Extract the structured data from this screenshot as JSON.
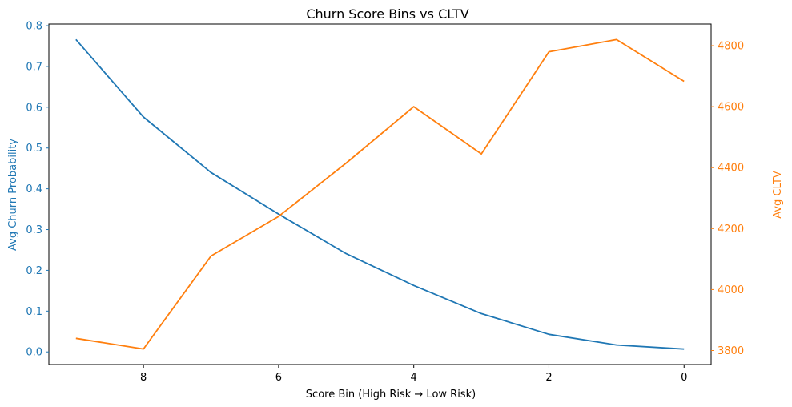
{
  "chart_data": {
    "type": "line",
    "title": "Churn Score Bins vs CLTV",
    "xlabel": "Score Bin (High Risk → Low Risk)",
    "x": [
      9,
      8,
      7,
      6,
      5,
      4,
      3,
      2,
      1,
      0
    ],
    "xlim": [
      9.4,
      -0.4
    ],
    "xticks": [
      "8",
      "6",
      "4",
      "2",
      "0"
    ],
    "grid": false,
    "legend": "none",
    "series": [
      {
        "axis": "left",
        "color": "#1f77b4",
        "values": [
          0.766,
          0.576,
          0.44,
          0.338,
          0.241,
          0.163,
          0.094,
          0.043,
          0.017,
          0.007
        ]
      },
      {
        "axis": "right",
        "color": "#ff7f0e",
        "values": [
          3840,
          3805,
          4110,
          4240,
          4415,
          4600,
          4445,
          4780,
          4820,
          4683
        ]
      }
    ],
    "y_left": {
      "label": "Avg Churn Probability",
      "color": "#1f77b4",
      "ylim": [
        -0.031,
        0.804
      ],
      "ticks": [
        "0.0",
        "0.1",
        "0.2",
        "0.3",
        "0.4",
        "0.5",
        "0.6",
        "0.7",
        "0.8"
      ]
    },
    "y_right": {
      "label": "Avg CLTV",
      "color": "#ff7f0e",
      "ylim": [
        3754,
        4871
      ],
      "ticks": [
        "3800",
        "4000",
        "4200",
        "4400",
        "4600",
        "4800"
      ]
    }
  }
}
